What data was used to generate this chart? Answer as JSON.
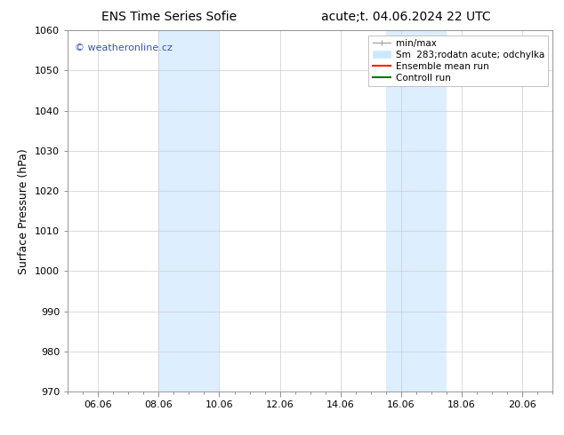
{
  "title_left": "ENS Time Series Sofie",
  "title_right": "acute;t. 04.06.2024 22 UTC",
  "ylabel": "Surface Pressure (hPa)",
  "ylim": [
    970,
    1060
  ],
  "yticks": [
    970,
    980,
    990,
    1000,
    1010,
    1020,
    1030,
    1040,
    1050,
    1060
  ],
  "x_min": 0.0,
  "x_max": 16.0,
  "xtick_labels": [
    "06.06",
    "08.06",
    "10.06",
    "12.06",
    "14.06",
    "16.06",
    "18.06",
    "20.06"
  ],
  "xtick_positions": [
    1,
    3,
    5,
    7,
    9,
    11,
    13,
    15
  ],
  "shaded_regions": [
    {
      "x_start": 3.0,
      "x_end": 5.0,
      "color": "#ddeeff"
    },
    {
      "x_start": 10.5,
      "x_end": 12.5,
      "color": "#ddeeff"
    }
  ],
  "watermark_text": "© weatheronline.cz",
  "watermark_color": "#3355bb",
  "legend_entries": [
    {
      "label": "min/max",
      "color": "#aaaaaa",
      "lw": 1.0,
      "type": "errorbar"
    },
    {
      "label": "Sm  283;rodatn acute; odchylka",
      "color": "#cce8ff",
      "lw": 5,
      "type": "band"
    },
    {
      "label": "Ensemble mean run",
      "color": "#ff2200",
      "lw": 1.5,
      "type": "line"
    },
    {
      "label": "Controll run",
      "color": "#007700",
      "lw": 1.5,
      "type": "line"
    }
  ],
  "bg_color": "#ffffff",
  "grid_color": "#cccccc",
  "title_fontsize": 10,
  "tick_fontsize": 8,
  "ylabel_fontsize": 9,
  "legend_fontsize": 7.5
}
